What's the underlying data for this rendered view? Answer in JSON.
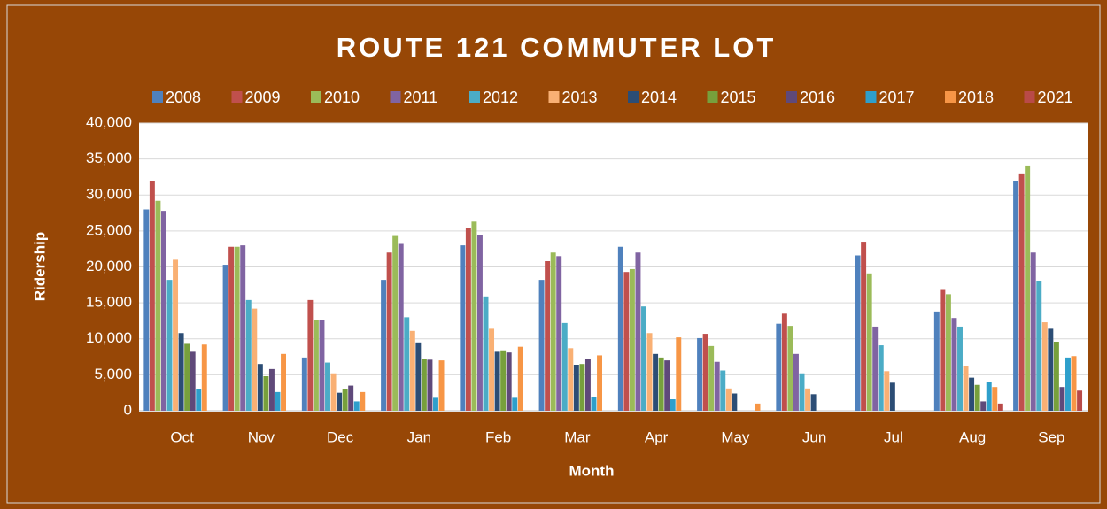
{
  "chart_data": {
    "type": "bar",
    "title": "ROUTE 121 COMMUTER LOT",
    "x_label": "Month",
    "y_label": "Ridership",
    "categories": [
      "Oct",
      "Nov",
      "Dec",
      "Jan",
      "Feb",
      "Mar",
      "Apr",
      "May",
      "Jun",
      "Jul",
      "Aug",
      "Sep"
    ],
    "series": [
      {
        "name": "2008",
        "color": "#4f81bd",
        "values": [
          28000,
          20300,
          7400,
          18200,
          23000,
          18200,
          22800,
          10100,
          12100,
          21600,
          13800,
          32000
        ]
      },
      {
        "name": "2009",
        "color": "#c0504d",
        "values": [
          32000,
          22800,
          15400,
          22000,
          25400,
          20800,
          19300,
          10700,
          13500,
          23500,
          16800,
          33000
        ]
      },
      {
        "name": "2010",
        "color": "#9bbb59",
        "values": [
          29200,
          22800,
          12600,
          24300,
          26300,
          22000,
          19700,
          9000,
          11800,
          19100,
          16200,
          34100
        ]
      },
      {
        "name": "2011",
        "color": "#8064a2",
        "values": [
          27800,
          23000,
          12600,
          23200,
          24400,
          21500,
          22000,
          6800,
          7900,
          11700,
          12900,
          22000
        ]
      },
      {
        "name": "2012",
        "color": "#4bacc6",
        "values": [
          18200,
          15400,
          6700,
          13000,
          15900,
          12200,
          14500,
          5600,
          5200,
          9100,
          11700,
          18000
        ]
      },
      {
        "name": "2013",
        "color": "#f9b074",
        "values": [
          21000,
          14200,
          5200,
          11100,
          11400,
          8700,
          10800,
          3100,
          3100,
          5500,
          6200,
          12300
        ]
      },
      {
        "name": "2014",
        "color": "#2c4d75",
        "values": [
          10800,
          6500,
          2500,
          9500,
          8200,
          6400,
          7900,
          2400,
          2300,
          3900,
          4600,
          11400
        ]
      },
      {
        "name": "2015",
        "color": "#77a03c",
        "values": [
          9300,
          4800,
          3000,
          7200,
          8400,
          6500,
          7400,
          0,
          0,
          0,
          3600,
          9600
        ]
      },
      {
        "name": "2016",
        "color": "#5f497a",
        "values": [
          8200,
          5800,
          3500,
          7100,
          8100,
          7200,
          7000,
          0,
          0,
          0,
          1300,
          3300
        ]
      },
      {
        "name": "2017",
        "color": "#2e9fcb",
        "values": [
          3000,
          2600,
          1300,
          1800,
          1800,
          1900,
          1600,
          0,
          0,
          0,
          4000,
          7400
        ]
      },
      {
        "name": "2018",
        "color": "#f79646",
        "values": [
          9200,
          7900,
          2600,
          7000,
          8900,
          7700,
          10200,
          1000,
          0,
          0,
          3300,
          7600
        ]
      },
      {
        "name": "2021",
        "color": "#b94a48",
        "values": [
          0,
          0,
          0,
          0,
          0,
          0,
          0,
          0,
          0,
          0,
          1000,
          2800
        ]
      }
    ],
    "ylim": [
      0,
      40000
    ],
    "yticks": [
      0,
      {
        "value": 5000,
        "label": "5,000"
      },
      {
        "value": 10000,
        "label": "10,000"
      },
      {
        "value": 15000,
        "label": "15,000"
      },
      {
        "value": 20000,
        "label": "20,000"
      },
      {
        "value": 25000,
        "label": "25,000"
      },
      {
        "value": 30000,
        "label": "30,000"
      },
      {
        "value": 35000,
        "label": "35,000"
      },
      {
        "value": 40000,
        "label": "40,000"
      }
    ],
    "grid": true,
    "legend": "top"
  }
}
